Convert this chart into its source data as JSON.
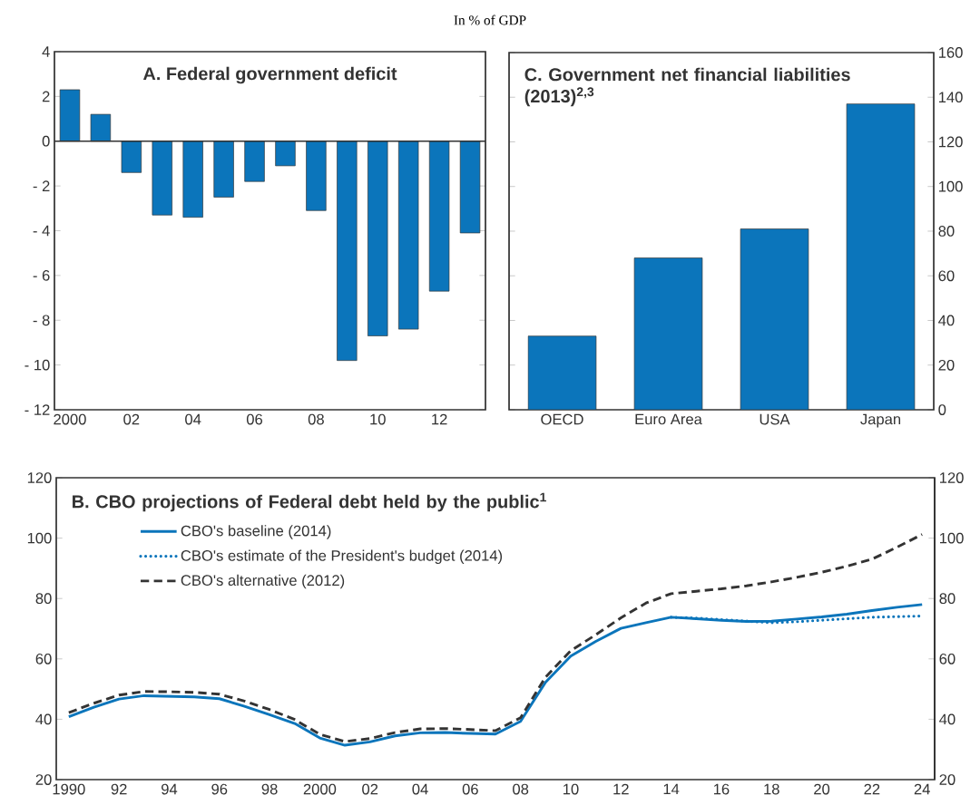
{
  "chart_data": [
    {
      "type": "bar",
      "title": "A. Federal government deficit",
      "subtitle": "In % of GDP",
      "categories": [
        "2000",
        null,
        "02",
        null,
        "04",
        null,
        "06",
        null,
        "08",
        null,
        "10",
        null,
        "12",
        null
      ],
      "values": [
        2.3,
        1.2,
        -1.4,
        -3.3,
        -3.4,
        -2.5,
        -1.8,
        -1.1,
        -3.1,
        -9.8,
        -8.7,
        -8.4,
        -6.7,
        -4.1
      ],
      "color": "#0b75bb",
      "ylim": [
        -12,
        4
      ],
      "yticks": [
        4,
        2,
        0,
        {
          "value": -2,
          "label": "- 2"
        },
        {
          "value": -4,
          "label": "- 4"
        },
        {
          "value": -6,
          "label": "- 6"
        },
        {
          "value": -8,
          "label": "- 8"
        },
        {
          "value": -10,
          "label": "- 10"
        },
        {
          "value": -12,
          "label": "- 12"
        }
      ]
    },
    {
      "type": "bar",
      "title": "C. Government net financial liabilities (2013)$^{2,3}$",
      "categories": [
        "OECD",
        "Euro Area",
        "USA",
        "Japan"
      ],
      "values": [
        33,
        68,
        81,
        137
      ],
      "color": "#0b75bb",
      "ylim": [
        0,
        160
      ],
      "yticks": [
        0,
        20,
        40,
        60,
        80,
        100,
        120,
        140,
        160
      ]
    },
    {
      "type": "line",
      "title": "B. CBO projections of Federal debt held by the public$^{1}$",
      "x": [
        1990,
        1991,
        1992,
        1993,
        1994,
        1995,
        1996,
        1997,
        1998,
        1999,
        2000,
        2001,
        2002,
        2003,
        2004,
        2005,
        2006,
        2007,
        2008,
        2009,
        2010,
        2011,
        2012,
        2013,
        2014,
        2015,
        2016,
        2017,
        2018,
        2019,
        2020,
        2021,
        2022,
        2023,
        2024
      ],
      "series": [
        {
          "name": "CBO's baseline (2014)",
          "color": "#0b75bb",
          "line_style": "solid",
          "values": [
            40.8,
            44.0,
            46.7,
            47.8,
            47.6,
            47.4,
            46.8,
            44.3,
            41.5,
            38.6,
            33.8,
            31.4,
            32.5,
            34.5,
            35.5,
            35.6,
            35.3,
            35.1,
            39.3,
            52.3,
            60.9,
            65.8,
            70.1,
            72.0,
            73.8,
            73.3,
            72.8,
            72.4,
            72.5,
            73.2,
            73.9,
            74.8,
            76.0,
            77.1,
            78.0
          ]
        },
        {
          "name": "CBO's estimate of the President's budget (2014)",
          "color": "#0b75bb",
          "line_style": "dotted",
          "values": [
            null,
            null,
            null,
            null,
            null,
            null,
            null,
            null,
            null,
            null,
            null,
            null,
            null,
            null,
            null,
            null,
            null,
            null,
            null,
            null,
            null,
            null,
            null,
            null,
            73.8,
            73.5,
            73.0,
            72.5,
            72.0,
            72.3,
            72.8,
            73.3,
            73.8,
            74.0,
            74.2
          ]
        },
        {
          "name": "CBO's alternative (2012)",
          "color": "#333333",
          "line_style": "dashed",
          "values": [
            42.2,
            45.3,
            48.0,
            49.2,
            49.1,
            48.9,
            48.3,
            46.0,
            43.2,
            39.9,
            35.0,
            32.6,
            33.6,
            35.6,
            36.8,
            36.9,
            36.6,
            36.2,
            40.5,
            54.0,
            62.7,
            68.0,
            73.6,
            78.5,
            81.6,
            82.4,
            83.2,
            84.2,
            85.5,
            87.0,
            88.7,
            90.7,
            93.0,
            97.0,
            101.2
          ]
        }
      ],
      "xlim": [
        1989.5,
        2024.5
      ],
      "xticks": [
        1990,
        {
          "value": 1992,
          "label": "92"
        },
        {
          "value": 1994,
          "label": "94"
        },
        {
          "value": 1996,
          "label": "96"
        },
        {
          "value": 1998,
          "label": "98"
        },
        2000,
        {
          "value": 2002,
          "label": "02"
        },
        {
          "value": 2004,
          "label": "04"
        },
        {
          "value": 2006,
          "label": "06"
        },
        {
          "value": 2008,
          "label": "08"
        },
        {
          "value": 2010,
          "label": "10"
        },
        {
          "value": 2012,
          "label": "12"
        },
        {
          "value": 2014,
          "label": "14"
        },
        {
          "value": 2016,
          "label": "16"
        },
        {
          "value": 2018,
          "label": "18"
        },
        {
          "value": 2020,
          "label": "20"
        },
        {
          "value": 2022,
          "label": "22"
        },
        {
          "value": 2024,
          "label": "24"
        }
      ],
      "ylim": [
        20,
        120
      ],
      "yticks": [
        20,
        40,
        60,
        80,
        100,
        120
      ],
      "y2lim": [
        20,
        120
      ],
      "y2ticks": [
        20,
        40,
        60,
        80,
        100,
        120
      ],
      "legend": "top left"
    }
  ]
}
